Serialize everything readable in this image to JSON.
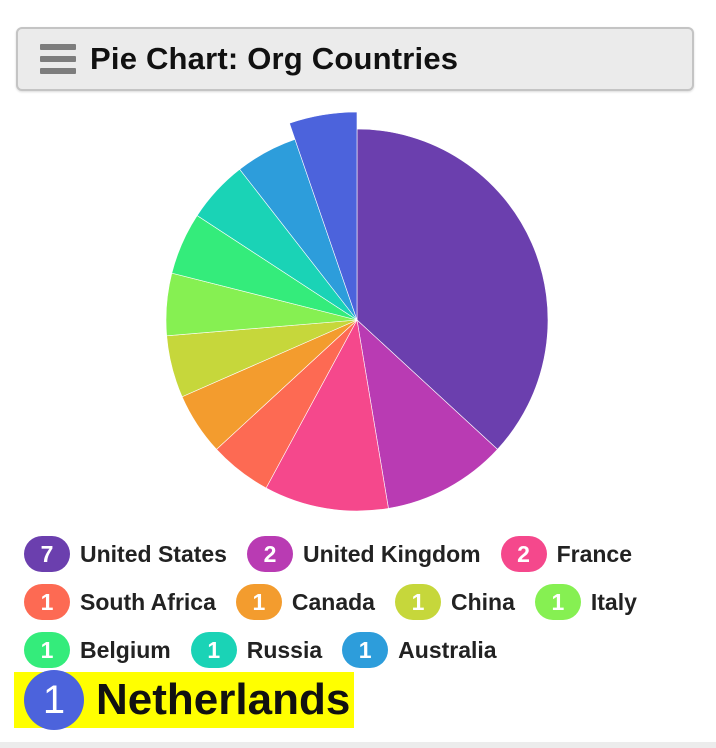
{
  "header": {
    "title": "Pie Chart: Org Countries",
    "menu_icon": "hamburger-menu-icon"
  },
  "chart_data": {
    "type": "pie",
    "title": "Pie Chart: Org Countries",
    "slices": [
      {
        "label": "United States",
        "value": 7,
        "color": "#6b3fae"
      },
      {
        "label": "United Kingdom",
        "value": 2,
        "color": "#b93bb3"
      },
      {
        "label": "France",
        "value": 2,
        "color": "#f5488c"
      },
      {
        "label": "South Africa",
        "value": 1,
        "color": "#fd6a53"
      },
      {
        "label": "Canada",
        "value": 1,
        "color": "#f39c2e"
      },
      {
        "label": "China",
        "value": 1,
        "color": "#c6d73b"
      },
      {
        "label": "Italy",
        "value": 1,
        "color": "#86f052"
      },
      {
        "label": "Belgium",
        "value": 1,
        "color": "#34ec7b"
      },
      {
        "label": "Russia",
        "value": 1,
        "color": "#1ad3b6"
      },
      {
        "label": "Australia",
        "value": 1,
        "color": "#2d9ddb"
      },
      {
        "label": "Netherlands",
        "value": 1,
        "color": "#4c63dc"
      }
    ],
    "highlighted": "Netherlands"
  },
  "legend": {
    "rows": [
      [
        {
          "count": "7",
          "label": "United States",
          "color": "#6b3fae"
        },
        {
          "count": "2",
          "label": "United Kingdom",
          "color": "#b93bb3"
        },
        {
          "count": "2",
          "label": "France",
          "color": "#f5488c"
        }
      ],
      [
        {
          "count": "1",
          "label": "South Africa",
          "color": "#fd6a53"
        },
        {
          "count": "1",
          "label": "Canada",
          "color": "#f39c2e"
        },
        {
          "count": "1",
          "label": "China",
          "color": "#c6d73b"
        },
        {
          "count": "1",
          "label": "Italy",
          "color": "#86f052"
        }
      ],
      [
        {
          "count": "1",
          "label": "Belgium",
          "color": "#34ec7b"
        },
        {
          "count": "1",
          "label": "Russia",
          "color": "#1ad3b6"
        },
        {
          "count": "1",
          "label": "Australia",
          "color": "#2d9ddb"
        }
      ]
    ],
    "highlight": {
      "count": "1",
      "label": "Netherlands",
      "color": "#4c63dc",
      "bg": "#ffff00"
    }
  }
}
